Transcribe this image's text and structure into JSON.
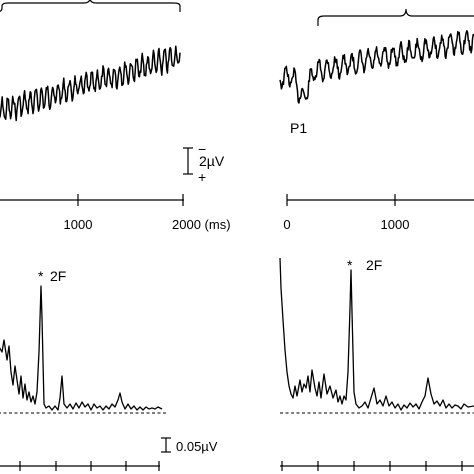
{
  "panels": {
    "top_left": {
      "x_ticks": [
        "1000",
        "2000 (ms)"
      ],
      "polarity_top": "−",
      "polarity_bottom": "+",
      "scale_label": "2µV"
    },
    "top_right": {
      "peak_label": "P1",
      "x_ticks": [
        "0",
        "1000"
      ]
    },
    "bottom_left": {
      "star": "*",
      "peak_label": "2F",
      "scale_label": "0.05µV"
    },
    "bottom_right": {
      "star": "*",
      "peak_label": "2F"
    }
  },
  "colors": {
    "trace": "#000000",
    "background": "#ffffff"
  }
}
